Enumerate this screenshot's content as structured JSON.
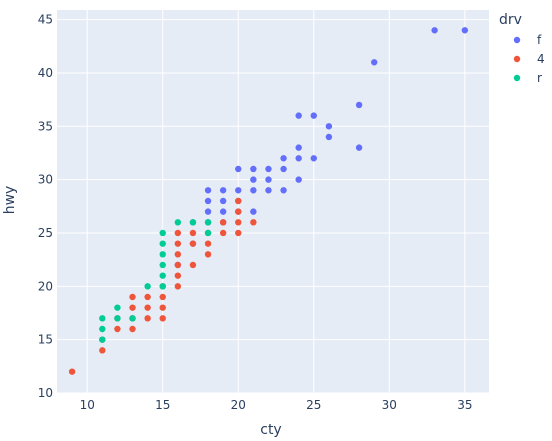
{
  "chart_data": {
    "type": "scatter",
    "xlabel": "cty",
    "ylabel": "hwy",
    "xlim": [
      8.0,
      36.6
    ],
    "ylim": [
      10.0,
      45.9
    ],
    "xticks": [
      10,
      15,
      20,
      25,
      30,
      35
    ],
    "yticks": [
      10,
      15,
      20,
      25,
      30,
      35,
      40,
      45
    ],
    "grid": true,
    "legend_title": "drv",
    "legend_placement": "top-right",
    "series": [
      {
        "name": "f",
        "color": "#636efa",
        "points": [
          [
            16,
            22
          ],
          [
            17,
            24
          ],
          [
            17,
            26
          ],
          [
            18,
            26
          ],
          [
            18,
            27
          ],
          [
            18,
            28
          ],
          [
            18,
            29
          ],
          [
            19,
            26
          ],
          [
            19,
            27
          ],
          [
            19,
            28
          ],
          [
            19,
            29
          ],
          [
            20,
            27
          ],
          [
            20,
            28
          ],
          [
            20,
            29
          ],
          [
            20,
            31
          ],
          [
            21,
            27
          ],
          [
            21,
            29
          ],
          [
            21,
            30
          ],
          [
            21,
            31
          ],
          [
            22,
            29
          ],
          [
            22,
            30
          ],
          [
            22,
            31
          ],
          [
            23,
            29
          ],
          [
            23,
            31
          ],
          [
            23,
            32
          ],
          [
            24,
            30
          ],
          [
            24,
            32
          ],
          [
            24,
            33
          ],
          [
            24,
            36
          ],
          [
            25,
            32
          ],
          [
            25,
            36
          ],
          [
            26,
            34
          ],
          [
            26,
            35
          ],
          [
            28,
            33
          ],
          [
            28,
            37
          ],
          [
            29,
            41
          ],
          [
            33,
            44
          ],
          [
            35,
            44
          ]
        ]
      },
      {
        "name": "4",
        "color": "#ef553b",
        "points": [
          [
            9,
            12
          ],
          [
            11,
            14
          ],
          [
            11,
            15
          ],
          [
            12,
            16
          ],
          [
            12,
            17
          ],
          [
            13,
            16
          ],
          [
            13,
            17
          ],
          [
            13,
            18
          ],
          [
            13,
            19
          ],
          [
            14,
            17
          ],
          [
            14,
            18
          ],
          [
            14,
            19
          ],
          [
            15,
            17
          ],
          [
            15,
            18
          ],
          [
            15,
            19
          ],
          [
            15,
            20
          ],
          [
            16,
            20
          ],
          [
            16,
            21
          ],
          [
            16,
            22
          ],
          [
            16,
            23
          ],
          [
            16,
            24
          ],
          [
            16,
            25
          ],
          [
            17,
            22
          ],
          [
            17,
            24
          ],
          [
            17,
            25
          ],
          [
            18,
            23
          ],
          [
            18,
            24
          ],
          [
            18,
            25
          ],
          [
            19,
            25
          ],
          [
            19,
            26
          ],
          [
            20,
            25
          ],
          [
            20,
            26
          ],
          [
            20,
            27
          ],
          [
            20,
            28
          ],
          [
            21,
            26
          ]
        ]
      },
      {
        "name": "r",
        "color": "#00cc96",
        "points": [
          [
            11,
            15
          ],
          [
            11,
            16
          ],
          [
            11,
            17
          ],
          [
            12,
            17
          ],
          [
            12,
            18
          ],
          [
            13,
            17
          ],
          [
            14,
            20
          ],
          [
            15,
            20
          ],
          [
            15,
            21
          ],
          [
            15,
            22
          ],
          [
            15,
            23
          ],
          [
            15,
            24
          ],
          [
            15,
            25
          ],
          [
            16,
            26
          ],
          [
            17,
            26
          ],
          [
            18,
            25
          ],
          [
            18,
            26
          ]
        ]
      }
    ]
  }
}
